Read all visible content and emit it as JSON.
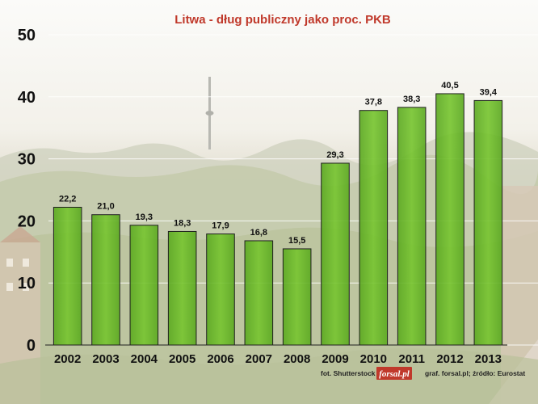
{
  "chart_data": {
    "type": "bar",
    "title": "Litwa - dług publiczny jako proc. PKB",
    "xlabel": "",
    "ylabel": "",
    "categories": [
      "2002",
      "2003",
      "2004",
      "2005",
      "2006",
      "2007",
      "2008",
      "2009",
      "2010",
      "2011",
      "2012",
      "2013"
    ],
    "values": [
      22.2,
      21.0,
      19.3,
      18.3,
      17.9,
      16.8,
      15.5,
      29.3,
      37.8,
      38.3,
      40.5,
      39.4
    ],
    "value_labels": [
      "22,2",
      "21,0",
      "19,3",
      "18,3",
      "17,9",
      "16,8",
      "15,5",
      "29,3",
      "37,8",
      "38,3",
      "40,5",
      "39,4"
    ],
    "ylim": [
      0,
      50
    ],
    "yticks": [
      "0",
      "10",
      "20",
      "30",
      "40",
      "50"
    ],
    "grid": true,
    "legend": "none",
    "bar_color": "#6fbf2a"
  },
  "credits": {
    "photo": "fot. Shutterstock",
    "logo": "forsal.pl",
    "source": "graf. forsal.pl;  źródło: Eurostat"
  }
}
